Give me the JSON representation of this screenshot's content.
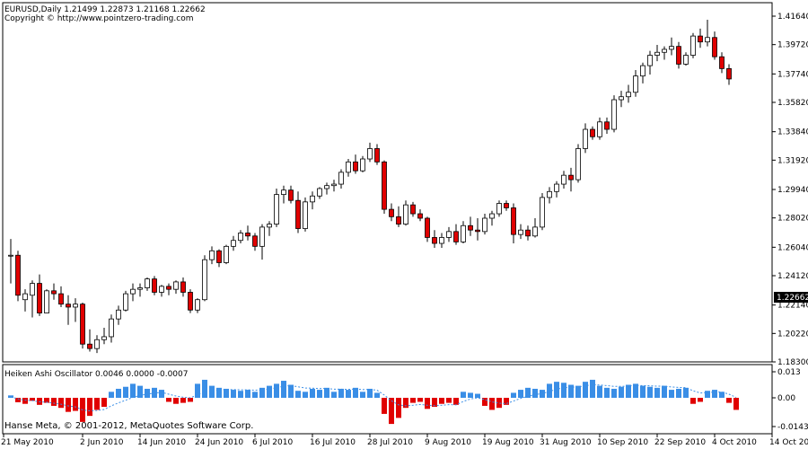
{
  "header": {
    "quote": "EURUSD,Daily  1.21499 1.22873 1.21168 1.22662",
    "copyright": "Copyright © http://www.pointzero-trading.com"
  },
  "indicator": {
    "label": "Heiken Ashi Oscillator 0.0046 0.0000 -0.0007"
  },
  "footer": {
    "copyright": "Hanse Meta, © 2001-2012, MetaQuotes Software Corp."
  },
  "colors": {
    "bull": "#ffffff",
    "bear": "#e00000",
    "osc_positive": "#3a8ee6",
    "osc_negative": "#e00000",
    "signal": "#3a8ee6",
    "current_price_bg": "#000000"
  },
  "chart_data": [
    {
      "type": "candlestick",
      "title": "EURUSD,Daily",
      "ylim": [
        1.183,
        1.4164
      ],
      "yticks": [
        1.4164,
        1.3972,
        1.3774,
        1.3582,
        1.3384,
        1.3192,
        1.2994,
        1.2802,
        1.2604,
        1.2412,
        1.2214,
        1.2022,
        1.183
      ],
      "ytick_labels": [
        "1.41640",
        "1.39720",
        "1.37740",
        "1.35820",
        "1.33840",
        "1.31920",
        "1.29940",
        "1.28020",
        "1.26040",
        "1.24120",
        "1.22140",
        "1.20220",
        "1.18300"
      ],
      "current_price": "1.22662",
      "current_price_value": 1.22662,
      "x_labels": [
        "21 May 2010",
        "2 Jun 2010",
        "14 Jun 2010",
        "24 Jun 2010",
        "6 Jul 2010",
        "16 Jul 2010",
        "28 Jul 2010",
        "9 Aug 2010",
        "19 Aug 2010",
        "31 Aug 2010",
        "10 Sep 2010",
        "22 Sep 2010",
        "4 Oct 2010",
        "14 Oct 2010"
      ],
      "x_label_bar_index": [
        -1,
        10,
        18,
        26,
        34,
        42,
        50,
        58,
        66,
        74,
        82,
        90,
        98,
        106
      ],
      "ohlc": [
        [
          1.255,
          1.266,
          1.236,
          1.255
        ],
        [
          1.255,
          1.258,
          1.224,
          1.228
        ],
        [
          1.225,
          1.232,
          1.217,
          1.229
        ],
        [
          1.228,
          1.238,
          1.213,
          1.236
        ],
        [
          1.236,
          1.242,
          1.214,
          1.216
        ],
        [
          1.216,
          1.232,
          1.216,
          1.231
        ],
        [
          1.231,
          1.236,
          1.225,
          1.229
        ],
        [
          1.229,
          1.234,
          1.22,
          1.222
        ],
        [
          1.222,
          1.228,
          1.208,
          1.22
        ],
        [
          1.22,
          1.226,
          1.21,
          1.222
        ],
        [
          1.222,
          1.223,
          1.192,
          1.195
        ],
        [
          1.195,
          1.205,
          1.19,
          1.192
        ],
        [
          1.192,
          1.201,
          1.189,
          1.198
        ],
        [
          1.198,
          1.206,
          1.195,
          1.2
        ],
        [
          1.2,
          1.215,
          1.196,
          1.212
        ],
        [
          1.212,
          1.221,
          1.208,
          1.218
        ],
        [
          1.218,
          1.231,
          1.217,
          1.229
        ],
        [
          1.229,
          1.236,
          1.224,
          1.232
        ],
        [
          1.232,
          1.236,
          1.227,
          1.233
        ],
        [
          1.233,
          1.24,
          1.231,
          1.239
        ],
        [
          1.239,
          1.241,
          1.228,
          1.23
        ],
        [
          1.23,
          1.235,
          1.227,
          1.234
        ],
        [
          1.234,
          1.236,
          1.228,
          1.232
        ],
        [
          1.232,
          1.238,
          1.229,
          1.237
        ],
        [
          1.237,
          1.24,
          1.227,
          1.23
        ],
        [
          1.23,
          1.232,
          1.216,
          1.218
        ],
        [
          1.218,
          1.226,
          1.216,
          1.225
        ],
        [
          1.225,
          1.255,
          1.224,
          1.252
        ],
        [
          1.252,
          1.261,
          1.249,
          1.258
        ],
        [
          1.258,
          1.259,
          1.247,
          1.25
        ],
        [
          1.25,
          1.262,
          1.249,
          1.261
        ],
        [
          1.261,
          1.268,
          1.258,
          1.265
        ],
        [
          1.265,
          1.272,
          1.263,
          1.27
        ],
        [
          1.27,
          1.275,
          1.265,
          1.268
        ],
        [
          1.268,
          1.27,
          1.258,
          1.261
        ],
        [
          1.261,
          1.276,
          1.252,
          1.274
        ],
        [
          1.274,
          1.278,
          1.268,
          1.276
        ],
        [
          1.276,
          1.3,
          1.274,
          1.296
        ],
        [
          1.296,
          1.302,
          1.29,
          1.299
        ],
        [
          1.299,
          1.302,
          1.29,
          1.292
        ],
        [
          1.292,
          1.298,
          1.27,
          1.273
        ],
        [
          1.273,
          1.294,
          1.271,
          1.291
        ],
        [
          1.291,
          1.298,
          1.286,
          1.295
        ],
        [
          1.295,
          1.301,
          1.293,
          1.3
        ],
        [
          1.3,
          1.304,
          1.296,
          1.302
        ],
        [
          1.302,
          1.306,
          1.298,
          1.303
        ],
        [
          1.303,
          1.313,
          1.3,
          1.311
        ],
        [
          1.311,
          1.32,
          1.308,
          1.318
        ],
        [
          1.318,
          1.323,
          1.31,
          1.312
        ],
        [
          1.312,
          1.322,
          1.311,
          1.32
        ],
        [
          1.32,
          1.331,
          1.318,
          1.327
        ],
        [
          1.327,
          1.33,
          1.316,
          1.318
        ],
        [
          1.318,
          1.319,
          1.283,
          1.286
        ],
        [
          1.286,
          1.29,
          1.278,
          1.281
        ],
        [
          1.281,
          1.288,
          1.274,
          1.276
        ],
        [
          1.276,
          1.292,
          1.275,
          1.289
        ],
        [
          1.289,
          1.291,
          1.281,
          1.283
        ],
        [
          1.283,
          1.286,
          1.278,
          1.28
        ],
        [
          1.28,
          1.281,
          1.264,
          1.267
        ],
        [
          1.267,
          1.272,
          1.26,
          1.263
        ],
        [
          1.263,
          1.27,
          1.26,
          1.267
        ],
        [
          1.267,
          1.274,
          1.264,
          1.271
        ],
        [
          1.271,
          1.276,
          1.262,
          1.264
        ],
        [
          1.264,
          1.278,
          1.263,
          1.275
        ],
        [
          1.275,
          1.281,
          1.268,
          1.272
        ],
        [
          1.272,
          1.28,
          1.265,
          1.271
        ],
        [
          1.271,
          1.283,
          1.269,
          1.28
        ],
        [
          1.28,
          1.285,
          1.275,
          1.283
        ],
        [
          1.283,
          1.292,
          1.281,
          1.29
        ],
        [
          1.29,
          1.292,
          1.285,
          1.287
        ],
        [
          1.287,
          1.29,
          1.263,
          1.269
        ],
        [
          1.269,
          1.276,
          1.266,
          1.272
        ],
        [
          1.272,
          1.275,
          1.265,
          1.268
        ],
        [
          1.268,
          1.28,
          1.267,
          1.274
        ],
        [
          1.274,
          1.297,
          1.272,
          1.294
        ],
        [
          1.294,
          1.301,
          1.29,
          1.298
        ],
        [
          1.298,
          1.305,
          1.294,
          1.303
        ],
        [
          1.303,
          1.312,
          1.3,
          1.309
        ],
        [
          1.309,
          1.314,
          1.298,
          1.306
        ],
        [
          1.306,
          1.33,
          1.304,
          1.327
        ],
        [
          1.327,
          1.344,
          1.324,
          1.34
        ],
        [
          1.34,
          1.342,
          1.333,
          1.335
        ],
        [
          1.335,
          1.348,
          1.333,
          1.345
        ],
        [
          1.345,
          1.348,
          1.337,
          1.34
        ],
        [
          1.34,
          1.363,
          1.338,
          1.36
        ],
        [
          1.36,
          1.366,
          1.355,
          1.362
        ],
        [
          1.362,
          1.37,
          1.358,
          1.365
        ],
        [
          1.365,
          1.38,
          1.362,
          1.376
        ],
        [
          1.376,
          1.385,
          1.371,
          1.383
        ],
        [
          1.383,
          1.393,
          1.377,
          1.39
        ],
        [
          1.39,
          1.397,
          1.386,
          1.392
        ],
        [
          1.392,
          1.396,
          1.387,
          1.394
        ],
        [
          1.394,
          1.402,
          1.39,
          1.396
        ],
        [
          1.396,
          1.399,
          1.381,
          1.384
        ],
        [
          1.384,
          1.392,
          1.383,
          1.39
        ],
        [
          1.39,
          1.405,
          1.388,
          1.403
        ],
        [
          1.403,
          1.408,
          1.395,
          1.399
        ],
        [
          1.399,
          1.414,
          1.396,
          1.402
        ],
        [
          1.402,
          1.406,
          1.387,
          1.389
        ],
        [
          1.389,
          1.392,
          1.378,
          1.381
        ],
        [
          1.381,
          1.384,
          1.37,
          1.374
        ]
      ]
    },
    {
      "type": "bar",
      "title": "Heiken Ashi Oscillator",
      "ylim": [
        -0.0143,
        0.013
      ],
      "yticks": [
        0.013,
        0.0,
        -0.0143
      ],
      "ytick_labels": [
        "0.013",
        "0.00",
        "-0.0143"
      ],
      "values": [
        0.0012,
        -0.0022,
        -0.003,
        -0.0015,
        -0.0035,
        -0.0025,
        -0.004,
        -0.005,
        -0.007,
        -0.0065,
        -0.012,
        -0.009,
        -0.006,
        -0.0045,
        0.003,
        0.0045,
        0.0055,
        0.007,
        0.006,
        0.0045,
        0.005,
        0.004,
        -0.002,
        -0.003,
        -0.0025,
        -0.002,
        0.007,
        0.009,
        0.006,
        0.005,
        0.0045,
        0.004,
        0.0035,
        0.004,
        0.003,
        0.005,
        0.006,
        0.007,
        0.0085,
        0.0065,
        0.0035,
        0.003,
        0.0045,
        0.004,
        0.005,
        0.003,
        0.0045,
        0.004,
        0.005,
        0.003,
        0.0045,
        0.0025,
        -0.008,
        -0.013,
        -0.01,
        -0.005,
        -0.0025,
        -0.002,
        -0.0055,
        -0.0045,
        -0.003,
        -0.0025,
        -0.0035,
        0.003,
        0.0025,
        0.002,
        -0.004,
        -0.006,
        -0.005,
        -0.0035,
        0.0025,
        0.004,
        0.005,
        0.0045,
        0.004,
        0.007,
        0.008,
        0.0075,
        0.0065,
        0.006,
        0.008,
        0.009,
        0.006,
        0.005,
        0.0045,
        0.0055,
        0.0065,
        0.007,
        0.006,
        0.0055,
        0.005,
        0.006,
        0.004,
        0.0045,
        0.005,
        -0.003,
        -0.002,
        0.0035,
        0.004,
        0.003,
        -0.0025,
        -0.006
      ],
      "signal": [
        0.0005,
        -0.0005,
        -0.0012,
        -0.0014,
        -0.002,
        -0.0022,
        -0.0027,
        -0.0032,
        -0.004,
        -0.0045,
        -0.006,
        -0.0065,
        -0.0063,
        -0.0058,
        -0.004,
        -0.0025,
        -0.0012,
        0.0002,
        0.0012,
        0.0018,
        0.0024,
        0.0027,
        0.0018,
        0.0009,
        0.0003,
        0.0,
        0.0015,
        0.003,
        0.0036,
        0.004,
        0.0041,
        0.0041,
        0.004,
        0.004,
        0.0038,
        0.004,
        0.0044,
        0.005,
        0.0058,
        0.0061,
        0.0055,
        0.0049,
        0.0048,
        0.0046,
        0.0047,
        0.0043,
        0.0043,
        0.0042,
        0.0044,
        0.0041,
        0.0042,
        0.0038,
        0.0014,
        -0.0015,
        -0.0035,
        -0.004,
        -0.0037,
        -0.0033,
        -0.0037,
        -0.0039,
        -0.0037,
        -0.0034,
        -0.0035,
        -0.0018,
        -0.0006,
        0.0,
        -0.0009,
        -0.002,
        -0.0027,
        -0.0029,
        -0.0016,
        -0.0003,
        0.0008,
        0.0016,
        0.0021,
        0.0032,
        0.0043,
        0.005,
        0.0053,
        0.0055,
        0.006,
        0.0066,
        0.0064,
        0.0061,
        0.0057,
        0.0057,
        0.0059,
        0.0062,
        0.0061,
        0.006,
        0.0058,
        0.0058,
        0.0054,
        0.0052,
        0.0051,
        0.0035,
        0.0024,
        0.0026,
        0.0029,
        0.0029,
        0.0018,
        0.0002
      ]
    }
  ]
}
